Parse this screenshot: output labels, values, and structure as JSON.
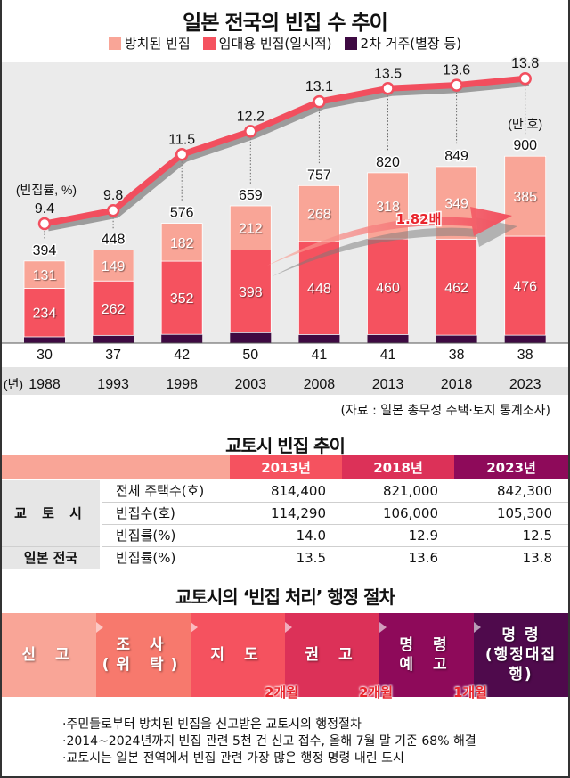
{
  "chart_title": "일본 전국의 빈집 수 추이",
  "legend": [
    {
      "label": "방치된 빈집",
      "color": "#f9a597"
    },
    {
      "label": "임대용 빈집(일시적)",
      "color": "#f5525f"
    },
    {
      "label": "2차 거주(별장 등)",
      "color": "#3e0a42"
    }
  ],
  "chart_data": {
    "type": "bar",
    "title": "일본 전국의 빈집 수 추이",
    "stacked": true,
    "categories": [
      "1988",
      "1993",
      "1998",
      "2003",
      "2008",
      "2013",
      "2018",
      "2023"
    ],
    "xlabel": "(년)",
    "ylabel": "(만 호)",
    "series": [
      {
        "name": "2차 거주(별장 등)",
        "color": "#3e0a42",
        "values": [
          30,
          37,
          42,
          50,
          41,
          41,
          38,
          38
        ]
      },
      {
        "name": "임대용 빈집(일시적)",
        "color": "#f5525f",
        "values": [
          234,
          262,
          352,
          398,
          448,
          460,
          462,
          476
        ]
      },
      {
        "name": "방치된 빈집",
        "color": "#f9a597",
        "values": [
          131,
          149,
          182,
          212,
          268,
          318,
          349,
          385
        ]
      }
    ],
    "totals": [
      394,
      448,
      576,
      659,
      757,
      820,
      849,
      900
    ],
    "line_series": {
      "name": "빈집률",
      "unit_label": "(빈집률, %)",
      "color": "#f24e5e",
      "values": [
        9.4,
        9.8,
        11.5,
        12.2,
        13.1,
        13.5,
        13.6,
        13.8
      ]
    },
    "annotation": {
      "text": "1.82배",
      "from": "2003",
      "to": "2023"
    },
    "unit_label": "(만 호)",
    "ylim": [
      0,
      900
    ],
    "grid": false,
    "legend_position": "top"
  },
  "source": "(자료 : 일본 총무성 주택·토지 통계조사)",
  "kyoto_table": {
    "title": "교토시 빈집 추이",
    "years": [
      {
        "label": "2013년",
        "color": "#f5525f"
      },
      {
        "label": "2018년",
        "color": "#dc3158"
      },
      {
        "label": "2023년",
        "color": "#8e0a5a"
      }
    ],
    "header_left_color": "#f9a597",
    "groups": [
      {
        "name": "교 토 시",
        "rows": [
          {
            "metric": "전체 주택수(호)",
            "values": [
              "814,400",
              "821,000",
              "842,300"
            ]
          },
          {
            "metric": "빈집수(호)",
            "values": [
              "114,290",
              "106,000",
              "105,300"
            ]
          },
          {
            "metric": "빈집률(%)",
            "values": [
              "14.0",
              "12.9",
              "12.5"
            ]
          }
        ]
      },
      {
        "name": "일본 전국",
        "rows": [
          {
            "metric": "빈집률(%)",
            "values": [
              "13.5",
              "13.6",
              "13.8"
            ]
          }
        ]
      }
    ]
  },
  "process": {
    "title": "교토시의 ‘빈집 처리’ 행정 절차",
    "steps": [
      {
        "label": "신 고",
        "color": "#f9a597"
      },
      {
        "label": "조 사\n(위 탁)",
        "color": "#f7796d"
      },
      {
        "label": "지 도",
        "color": "#f5525f"
      },
      {
        "label": "권 고",
        "color": "#dc3158"
      },
      {
        "label": "명 령\n예 고",
        "color": "#8e0a5a"
      },
      {
        "label": "명 령\n(행정대집행)",
        "color": "#4f0a4c"
      }
    ],
    "durations": [
      "2개월",
      "2개월",
      "1개월"
    ]
  },
  "notes": [
    "·주민들로부터 방치된 빈집을 신고받은 교토시의 행정절차",
    "·2014~2024년까지 빈집 관련 5천 건 신고 접수, 올해 7월 말 기준 68% 해결",
    "·교토시는 일본 전역에서 빈집 관련 가장 많은 행정 명령 내린 도시"
  ]
}
